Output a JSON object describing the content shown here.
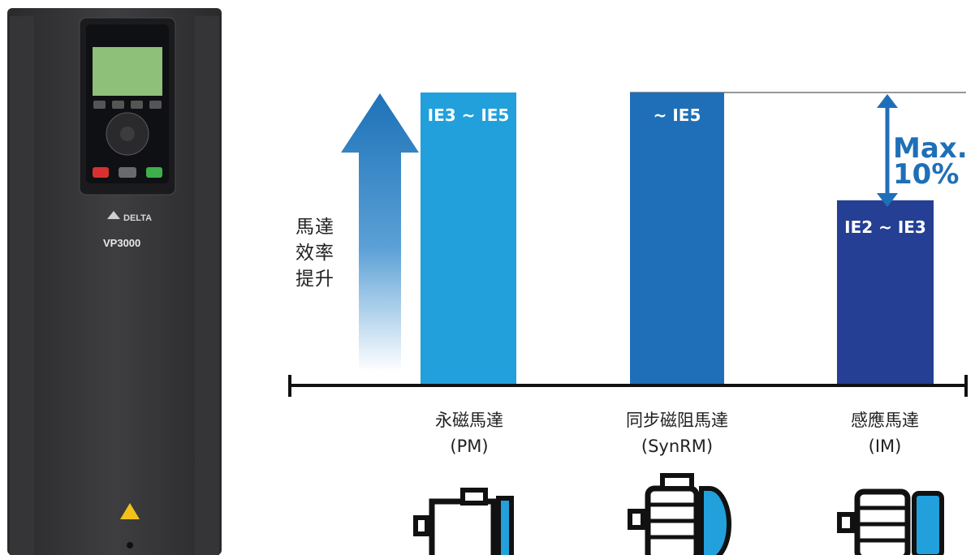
{
  "product": {
    "brand": "DELTA",
    "model": "VP3000"
  },
  "axis_label_lines": [
    "馬達",
    "效率",
    "提升"
  ],
  "max_label_lines": [
    "Max.",
    "10%"
  ],
  "colors": {
    "pm": "#21a0dc",
    "synrm": "#1f6fb8",
    "im": "#243f93",
    "arrow": "#1d72b8"
  },
  "chart_data": {
    "type": "bar",
    "categories": [
      {
        "name": "永磁馬達",
        "code": "(PM)"
      },
      {
        "name": "同步磁阻馬達",
        "code": "(SynRM)"
      },
      {
        "name": "感應馬達",
        "code": "(IM)"
      }
    ],
    "series": [
      {
        "values": [
          100,
          100,
          63
        ],
        "labels": [
          "IE3 ~ IE5",
          "~ IE5",
          "IE2 ~ IE3"
        ]
      }
    ],
    "ylim": [
      0,
      100
    ],
    "grid": false,
    "annotations": [
      "Max. 10%"
    ]
  }
}
